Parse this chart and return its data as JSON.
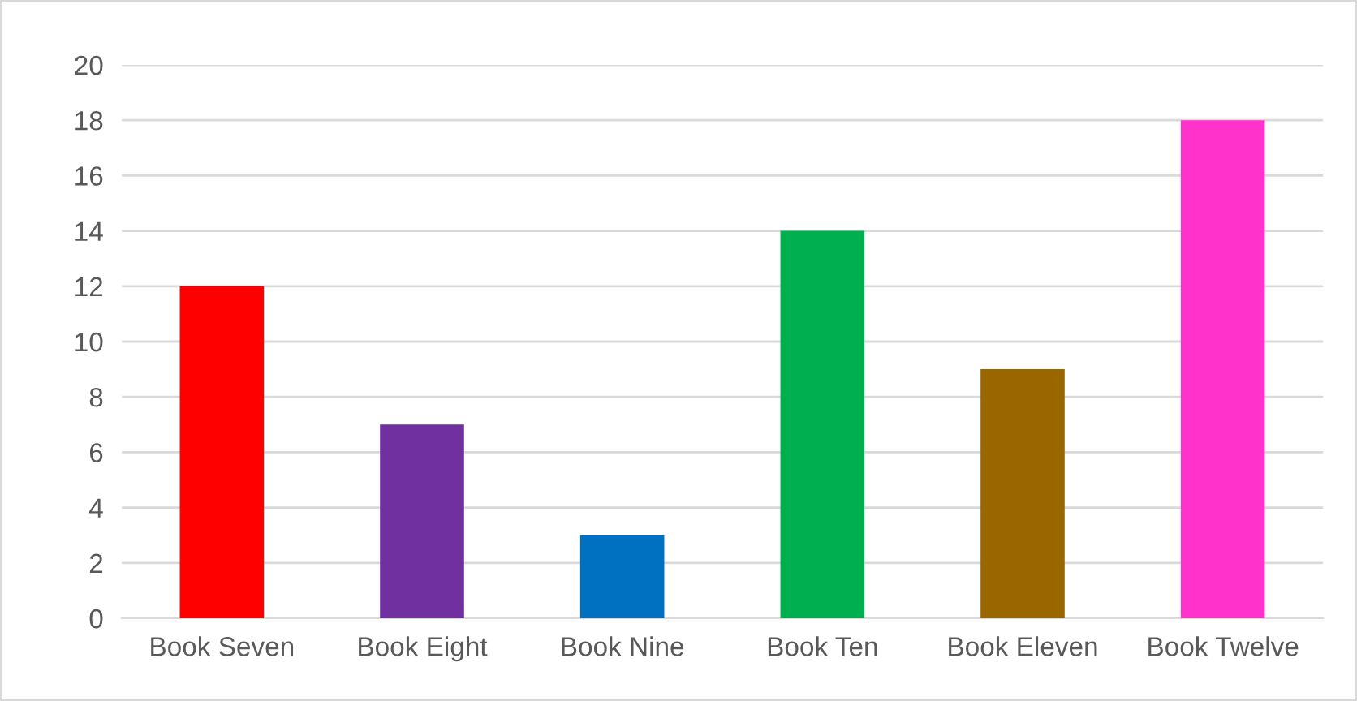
{
  "chart_data": {
    "type": "bar",
    "categories": [
      "Book Seven",
      "Book Eight",
      "Book Nine",
      "Book Ten",
      "Book Eleven",
      "Book Twelve"
    ],
    "values": [
      12,
      7,
      3,
      14,
      9,
      18
    ],
    "colors": [
      "#ff0000",
      "#7030a0",
      "#0070c0",
      "#00b050",
      "#996600",
      "#ff33cc"
    ],
    "ylim": [
      0,
      20
    ],
    "yticks": [
      0,
      2,
      4,
      6,
      8,
      10,
      12,
      14,
      16,
      18,
      20
    ],
    "grid": "y",
    "legend": false
  }
}
